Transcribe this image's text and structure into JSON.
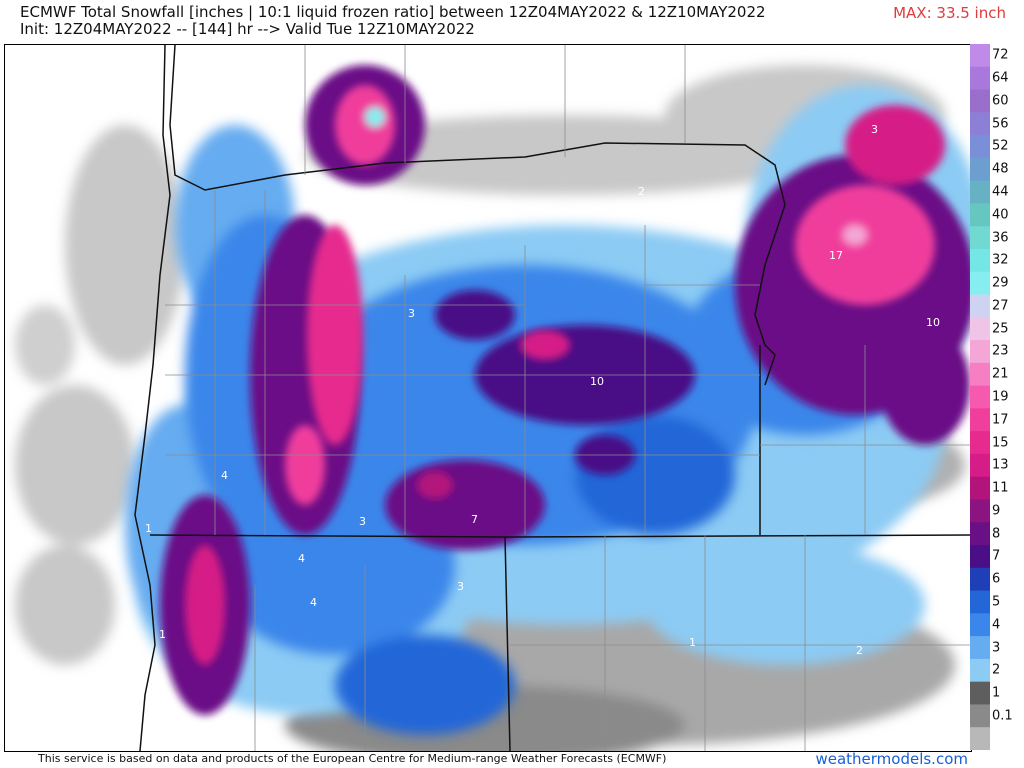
{
  "header": {
    "line1": "ECMWF Total Snowfall [inches | 10:1 liquid frozen ratio] between 12Z04MAY2022 & 12Z10MAY2022",
    "line2": "Init: 12Z04MAY2022 -- [144] hr --> Valid Tue 12Z10MAY2022",
    "max": "MAX: 33.5 inch"
  },
  "legend": {
    "levels": [
      "72",
      "64",
      "60",
      "56",
      "52",
      "48",
      "44",
      "40",
      "36",
      "32",
      "29",
      "27",
      "25",
      "23",
      "21",
      "19",
      "17",
      "15",
      "13",
      "11",
      "9",
      "8",
      "7",
      "6",
      "5",
      "4",
      "3",
      "2",
      "1",
      "0.1"
    ],
    "colors": [
      "#c08ae8",
      "#a978dc",
      "#9a6fcc",
      "#8b7fd6",
      "#7b8fd8",
      "#6d9ed0",
      "#66b1c4",
      "#66c6c0",
      "#6fd9d2",
      "#74e6e6",
      "#86eef0",
      "#cfd3f2",
      "#f0c4e6",
      "#f4a6d6",
      "#f67ec2",
      "#f55aae",
      "#f03e9c",
      "#e62a8e",
      "#d61c86",
      "#b3147c",
      "#8c1480",
      "#6a1086",
      "#4a0f86",
      "#1f3fb8",
      "#2266d8",
      "#3b86ea",
      "#66acf0",
      "#8ccbf4",
      "#5e5e5e",
      "#8a8a8a",
      "#b8b8b8"
    ]
  },
  "map_labels": {
    "l10a": "10",
    "l10b": "10",
    "l17": "17",
    "l3a": "3",
    "l3b": "3",
    "l3c": "3",
    "l3d": "3",
    "l4a": "4",
    "l4b": "4",
    "l4c": "4",
    "l7": "7",
    "l2a": "2",
    "l2b": "2",
    "l1a": "1",
    "l1b": "1",
    "l1c": "1"
  },
  "footer": {
    "credit": "This service is based on data and products of the European Centre for Medium-range Weather Forecasts (ECMWF)",
    "site": "weathermodels.com"
  }
}
